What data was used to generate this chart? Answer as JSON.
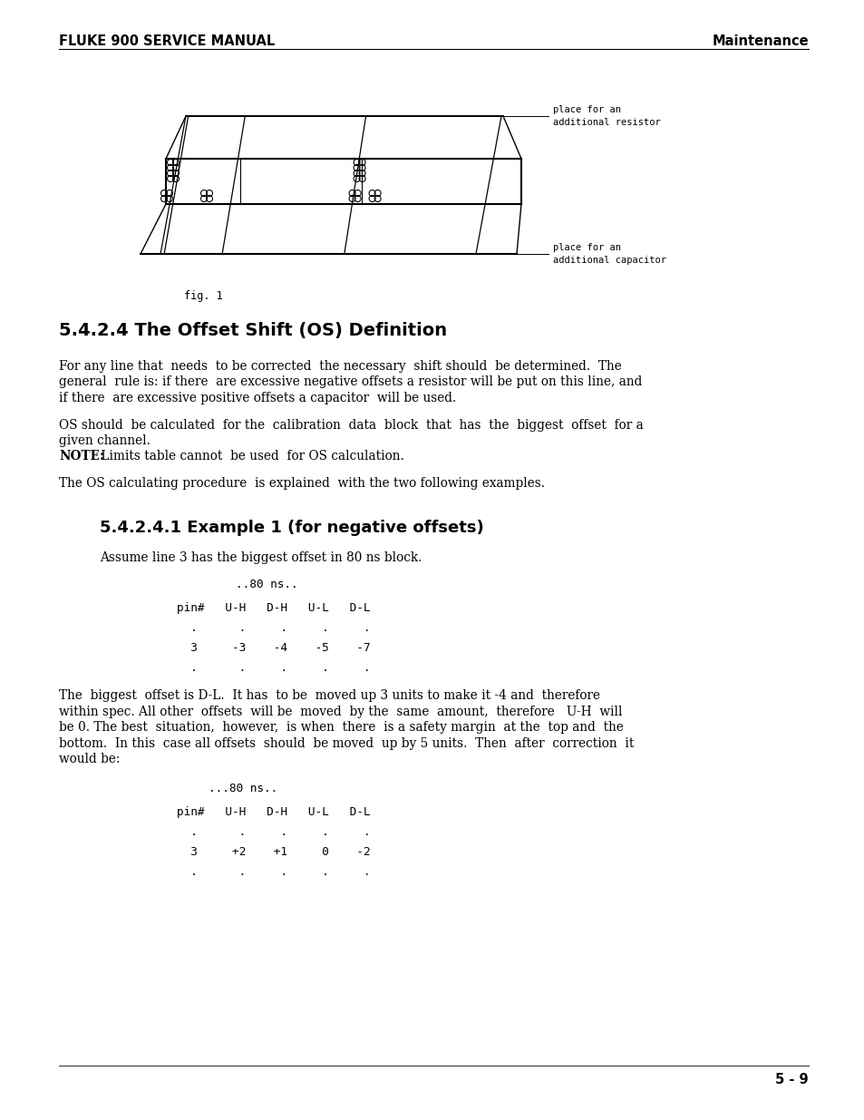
{
  "header_left": "FLUKE 900 SERVICE MANUAL",
  "header_right": "Maintenance",
  "footer": "5 - 9",
  "fig_caption": "fig. 1",
  "section_title": "5.4.2.4 The Offset Shift (OS) Definition",
  "para1_lines": [
    "For any line that  needs  to be corrected  the necessary  shift should  be determined.  The",
    "general  rule is: if there  are excessive negative offsets a resistor will be put on this line, and",
    "if there  are excessive positive offsets a capacitor  will be used."
  ],
  "para2_line1": "OS should  be calculated  for the  calibration  data  block  that  has  the  biggest  offset  for a",
  "para2_line2": "given channel.",
  "para2_note_bold": "NOTE:",
  "para2_note_rest": " Limits table cannot  be used  for OS calculation.",
  "para3": "The OS calculating procedure  is explained  with the two following examples.",
  "subsection_title": "5.4.2.4.1 Example 1 (for negative offsets)",
  "sub_para1": "Assume line 3 has the biggest offset in 80 ns block.",
  "table1_header": "..80 ns..",
  "table1_cols": "pin#   U-H   D-H   U-L   D-L",
  "table1_dots": "  .      .     .     .     .",
  "table1_row": "  3     -3    -4    -5    -7",
  "para4_lines": [
    "The  biggest  offset is D-L.  It has  to be  moved up 3 units to make it -4 and  therefore",
    "within spec. All other  offsets  will be  moved  by the  same  amount,  therefore   U-H  will",
    "be 0. The best  situation,  however,  is when  there  is a safety margin  at the  top and  the",
    "bottom.  In this  case all offsets  should  be moved  up by 5 units.  Then  after  correction  it",
    "would be:"
  ],
  "table2_header": "...80 ns..",
  "table2_cols": "pin#   U-H   D-H   U-L   D-L",
  "table2_dots": "  .      .     .     .     .",
  "table2_row": "  3     +2    +1     0    -2",
  "annotation_resistor": "place for an\nadditional resistor",
  "annotation_capacitor": "place for an\nadditional capacitor",
  "bg_color": "#ffffff",
  "text_color": "#000000"
}
